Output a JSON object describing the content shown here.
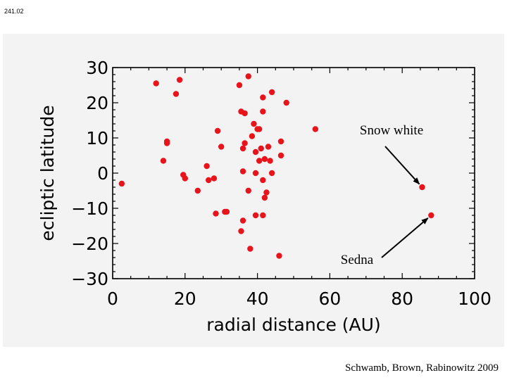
{
  "slide_number": "241.02",
  "credit": "Schwamb, Brown, Rabinowitz 2009",
  "chart_data": {
    "type": "scatter",
    "xlabel": "radial distance (AU)",
    "ylabel": "ecliptic latitude",
    "xlim": [
      0,
      100
    ],
    "ylim": [
      -30,
      30
    ],
    "x_ticks": [
      0,
      20,
      40,
      60,
      80,
      100
    ],
    "y_ticks": [
      30,
      20,
      10,
      0,
      -10,
      -20,
      -30
    ],
    "y_tick_labels": [
      "30",
      "20",
      "10",
      "0",
      "−10",
      "−20",
      "−30"
    ],
    "grid": false,
    "marker_color": "#e8141b",
    "series": [
      {
        "points": [
          {
            "x": 2.5,
            "y": -3
          },
          {
            "x": 12,
            "y": 25.5
          },
          {
            "x": 17.5,
            "y": 22.5
          },
          {
            "x": 18.5,
            "y": 26.5
          },
          {
            "x": 14,
            "y": 3.5
          },
          {
            "x": 15,
            "y": 9
          },
          {
            "x": 15,
            "y": 8.5
          },
          {
            "x": 19.5,
            "y": -0.5
          },
          {
            "x": 20,
            "y": -1.5
          },
          {
            "x": 23.5,
            "y": -5
          },
          {
            "x": 26,
            "y": 2
          },
          {
            "x": 26.5,
            "y": -2
          },
          {
            "x": 28,
            "y": -1.5
          },
          {
            "x": 28.5,
            "y": -11.5
          },
          {
            "x": 29,
            "y": 12
          },
          {
            "x": 30,
            "y": 7.5
          },
          {
            "x": 31,
            "y": -11
          },
          {
            "x": 31.5,
            "y": -11
          },
          {
            "x": 35,
            "y": 25
          },
          {
            "x": 35.5,
            "y": -16.5
          },
          {
            "x": 35.5,
            "y": 17.5
          },
          {
            "x": 36.5,
            "y": 17
          },
          {
            "x": 37.5,
            "y": 27.5
          },
          {
            "x": 36,
            "y": 7
          },
          {
            "x": 36.5,
            "y": 8.5
          },
          {
            "x": 36,
            "y": 0.5
          },
          {
            "x": 37.5,
            "y": -5
          },
          {
            "x": 38,
            "y": -21.5
          },
          {
            "x": 36,
            "y": -13.5
          },
          {
            "x": 38.5,
            "y": 10.5
          },
          {
            "x": 39,
            "y": 14
          },
          {
            "x": 39.5,
            "y": 6
          },
          {
            "x": 39.5,
            "y": 0
          },
          {
            "x": 40,
            "y": 12.5
          },
          {
            "x": 40.5,
            "y": 12.5
          },
          {
            "x": 40.5,
            "y": 3.5
          },
          {
            "x": 41,
            "y": 7
          },
          {
            "x": 41.5,
            "y": 21.5
          },
          {
            "x": 41.5,
            "y": 17.5
          },
          {
            "x": 42,
            "y": 4
          },
          {
            "x": 41.5,
            "y": -12
          },
          {
            "x": 39.5,
            "y": -12
          },
          {
            "x": 41.5,
            "y": -2
          },
          {
            "x": 42,
            "y": -7
          },
          {
            "x": 42.5,
            "y": -5.5
          },
          {
            "x": 43,
            "y": 7.5
          },
          {
            "x": 43.5,
            "y": 3.5
          },
          {
            "x": 44,
            "y": 23
          },
          {
            "x": 44,
            "y": 0
          },
          {
            "x": 46,
            "y": -23.5
          },
          {
            "x": 46.5,
            "y": 9
          },
          {
            "x": 46.5,
            "y": 5
          },
          {
            "x": 48,
            "y": 20
          },
          {
            "x": 56,
            "y": 12.5
          },
          {
            "x": 85.5,
            "y": -4
          },
          {
            "x": 88,
            "y": -12
          }
        ]
      }
    ],
    "annotations": [
      {
        "text": "Snow white",
        "target": {
          "x": 85.5,
          "y": -4
        }
      },
      {
        "text": "Sedna",
        "target": {
          "x": 88,
          "y": -12
        }
      }
    ]
  }
}
